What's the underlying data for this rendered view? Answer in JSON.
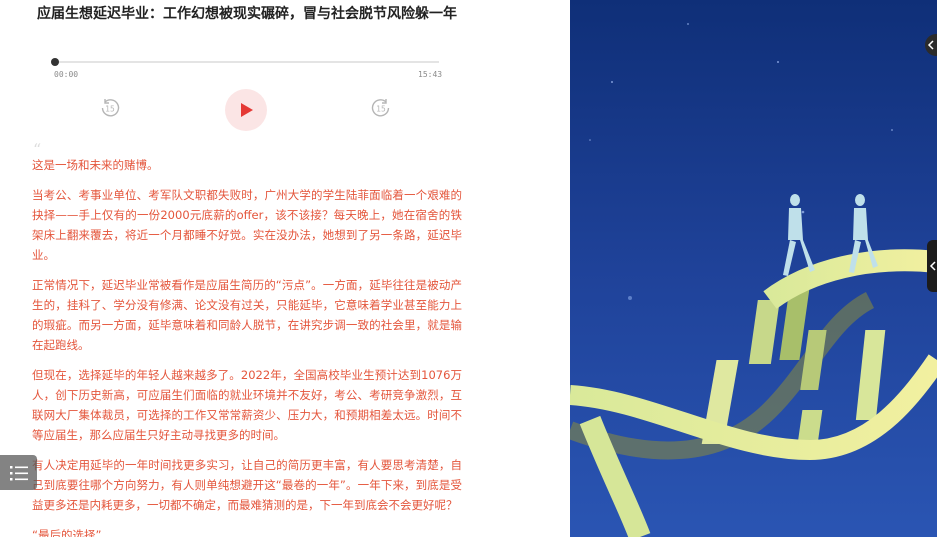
{
  "article": {
    "title": "应届生想延迟毕业：工作幻想被现实碾碎，冒与社会脱节风险躲一年",
    "paragraphs": [
      "这是一场和未来的赌博。",
      "当考公、考事业单位、考军队文职都失败时，广州大学的学生陆菲面临着一个艰难的抉择——手上仅有的一份2000元底薪的offer，该不该接？每天晚上，她在宿舍的铁架床上翻来覆去，将近一个月都睡不好觉。实在没办法，她想到了另一条路，延迟毕业。",
      "正常情况下，延迟毕业常被看作是应届生简历的“污点”。一方面，延毕往往是被动产生的，挂科了、学分没有修满、论文没有过关，只能延毕，它意味着学业甚至能力上的瑕疵。而另一方面，延毕意味着和同龄人脱节，在讲究步调一致的社会里，就是输在起跑线。",
      "但现在，选择延毕的年轻人越来越多了。2022年，全国高校毕业生预计达到1076万人，创下历史新高，可应届生们面临的就业环境并不友好，考公、考研竞争激烈，互联网大厂集体裁员，可选择的工作又常常薪资少、压力大，和预期相差太远。时间不等应届生，那么应届生只好主动寻找更多的时间。",
      "有人决定用延毕的一年时间找更多实习，让自己的简历更丰富，有人要思考清楚，自己到底要往哪个方向努力，有人则单纯想避开这“最卷的一年”。一年下来，到底是受益更多还是内耗更多，一切都不确定，而最难猜测的是，下一年到底会不会更好呢？"
    ],
    "subheading": "“最后的选择”"
  },
  "player": {
    "current_time": "00:00",
    "duration": "15:43",
    "progress": 0,
    "skip_back_label": "15",
    "skip_forward_label": "15"
  },
  "colors": {
    "body_text": "#e4553b",
    "play_accent": "#e53935",
    "play_bg": "#fbe5e5",
    "art_bg": "#1f3e93"
  },
  "icons": {
    "play": "play-icon",
    "skip_back": "skip-back-15-icon",
    "skip_forward": "skip-forward-15-icon",
    "toc": "list-icon",
    "handle": "chevron-left-icon"
  }
}
